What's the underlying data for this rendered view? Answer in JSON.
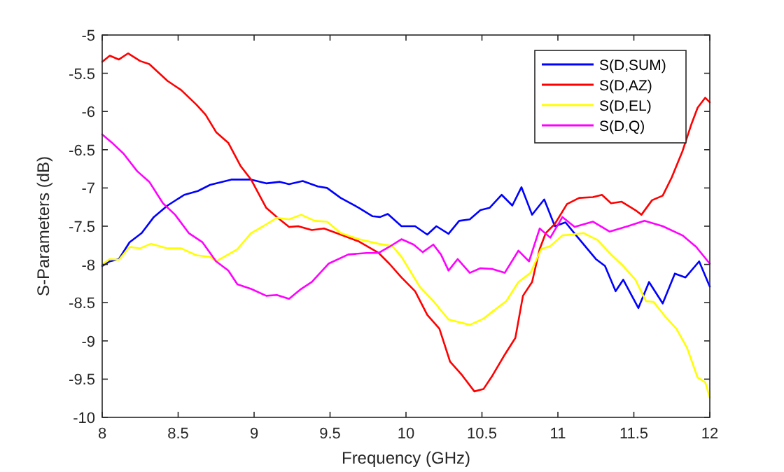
{
  "chart_data": {
    "type": "line",
    "xlabel": "Frequency (GHz)",
    "ylabel": "S-Parameters (dB)",
    "xlim": [
      8,
      12
    ],
    "xticks": [
      8,
      8.5,
      9,
      9.5,
      10,
      10.5,
      11,
      11.5,
      12
    ],
    "ylim": [
      -10,
      -5
    ],
    "yticks": [
      -10,
      -9.5,
      -9,
      -8.5,
      -8,
      -7.5,
      -7,
      -6.5,
      -6,
      -5.5,
      -5
    ],
    "grid": false,
    "legend": "top right",
    "marker": "none",
    "line_style": "solid",
    "series": [
      {
        "name": "S(D,SUM)",
        "color": "#0000ff",
        "x": [
          8,
          8.05,
          8.11,
          8.18,
          8.26,
          8.34,
          8.43,
          8.54,
          8.63,
          8.71,
          8.85,
          8.98,
          9.08,
          9.17,
          9.23,
          9.32,
          9.42,
          9.48,
          9.57,
          9.69,
          9.78,
          9.83,
          9.88,
          9.97,
          10.06,
          10.14,
          10.2,
          10.28,
          10.35,
          10.42,
          10.49,
          10.55,
          10.63,
          10.7,
          10.76,
          10.83,
          10.91,
          10.98,
          11.05,
          11.12,
          11.25,
          11.31,
          11.38,
          11.43,
          11.53,
          11.6,
          11.69,
          11.77,
          11.84,
          11.93,
          12
        ],
        "values": [
          -8.02,
          -7.96,
          -7.93,
          -7.71,
          -7.59,
          -7.38,
          -7.23,
          -7.09,
          -7.04,
          -6.96,
          -6.89,
          -6.89,
          -6.94,
          -6.92,
          -6.95,
          -6.91,
          -6.98,
          -7.0,
          -7.13,
          -7.26,
          -7.37,
          -7.38,
          -7.34,
          -7.5,
          -7.5,
          -7.61,
          -7.5,
          -7.6,
          -7.43,
          -7.41,
          -7.29,
          -7.26,
          -7.09,
          -7.23,
          -6.99,
          -7.35,
          -7.15,
          -7.5,
          -7.45,
          -7.62,
          -7.93,
          -8.02,
          -8.35,
          -8.2,
          -8.57,
          -8.23,
          -8.51,
          -8.12,
          -8.17,
          -7.96,
          -8.29
        ]
      },
      {
        "name": "S(D,AZ)",
        "color": "#ff0000",
        "x": [
          8,
          8.05,
          8.11,
          8.17,
          8.25,
          8.31,
          8.37,
          8.43,
          8.52,
          8.62,
          8.68,
          8.75,
          8.83,
          8.91,
          8.98,
          9.08,
          9.15,
          9.23,
          9.29,
          9.38,
          9.46,
          9.57,
          9.69,
          9.82,
          9.89,
          9.97,
          10.06,
          10.14,
          10.22,
          10.29,
          10.37,
          10.45,
          10.51,
          10.57,
          10.65,
          10.72,
          10.77,
          10.83,
          10.88,
          10.92,
          10.98,
          11.06,
          11.14,
          11.23,
          11.29,
          11.35,
          11.42,
          11.51,
          11.55,
          11.62,
          11.69,
          11.75,
          11.82,
          11.88,
          11.92,
          11.97,
          12
        ],
        "values": [
          -5.35,
          -5.27,
          -5.32,
          -5.24,
          -5.34,
          -5.38,
          -5.49,
          -5.6,
          -5.72,
          -5.91,
          -6.04,
          -6.27,
          -6.41,
          -6.71,
          -6.89,
          -7.26,
          -7.38,
          -7.51,
          -7.5,
          -7.55,
          -7.53,
          -7.61,
          -7.7,
          -7.85,
          -7.99,
          -8.17,
          -8.35,
          -8.66,
          -8.84,
          -9.27,
          -9.45,
          -9.66,
          -9.63,
          -9.45,
          -9.18,
          -8.96,
          -8.41,
          -8.23,
          -7.8,
          -7.59,
          -7.47,
          -7.21,
          -7.13,
          -7.12,
          -7.09,
          -7.2,
          -7.18,
          -7.29,
          -7.35,
          -7.16,
          -7.1,
          -6.86,
          -6.52,
          -6.16,
          -5.95,
          -5.82,
          -5.88
        ]
      },
      {
        "name": "S(D,EL)",
        "color": "#ffff00",
        "x": [
          8,
          8.05,
          8.11,
          8.18,
          8.25,
          8.32,
          8.43,
          8.52,
          8.62,
          8.71,
          8.75,
          8.83,
          8.89,
          8.98,
          9.06,
          9.15,
          9.23,
          9.31,
          9.4,
          9.48,
          9.57,
          9.69,
          9.82,
          9.91,
          9.97,
          10.09,
          10.18,
          10.28,
          10.34,
          10.42,
          10.51,
          10.58,
          10.66,
          10.74,
          10.82,
          10.89,
          10.95,
          11.03,
          11.09,
          11.17,
          11.26,
          11.35,
          11.43,
          11.51,
          11.58,
          11.63,
          11.71,
          11.78,
          11.85,
          11.92,
          11.97,
          12
        ],
        "values": [
          -8.0,
          -7.93,
          -7.94,
          -7.77,
          -7.79,
          -7.73,
          -7.79,
          -7.79,
          -7.88,
          -7.9,
          -7.96,
          -7.87,
          -7.8,
          -7.59,
          -7.5,
          -7.39,
          -7.41,
          -7.35,
          -7.43,
          -7.44,
          -7.59,
          -7.67,
          -7.73,
          -7.76,
          -7.9,
          -8.29,
          -8.48,
          -8.72,
          -8.75,
          -8.79,
          -8.71,
          -8.6,
          -8.48,
          -8.23,
          -8.11,
          -7.8,
          -7.76,
          -7.62,
          -7.61,
          -7.59,
          -7.68,
          -7.87,
          -8.02,
          -8.2,
          -8.48,
          -8.49,
          -8.69,
          -8.84,
          -9.09,
          -9.48,
          -9.54,
          -9.74
        ]
      },
      {
        "name": "S(D,Q)",
        "color": "#ff00ff",
        "x": [
          8,
          8.06,
          8.14,
          8.23,
          8.31,
          8.4,
          8.48,
          8.57,
          8.66,
          8.75,
          8.83,
          8.89,
          8.98,
          9.08,
          9.15,
          9.23,
          9.31,
          9.38,
          9.49,
          9.62,
          9.74,
          9.82,
          9.89,
          9.97,
          10.05,
          10.11,
          10.18,
          10.23,
          10.28,
          10.34,
          10.42,
          10.49,
          10.57,
          10.65,
          10.74,
          10.81,
          10.88,
          10.95,
          11.03,
          11.11,
          11.23,
          11.34,
          11.46,
          11.57,
          11.69,
          11.82,
          11.91,
          12
        ],
        "values": [
          -6.3,
          -6.4,
          -6.55,
          -6.78,
          -6.92,
          -7.2,
          -7.35,
          -7.59,
          -7.71,
          -7.96,
          -8.08,
          -8.26,
          -8.32,
          -8.41,
          -8.4,
          -8.45,
          -8.32,
          -8.23,
          -7.99,
          -7.87,
          -7.85,
          -7.85,
          -7.77,
          -7.67,
          -7.74,
          -7.84,
          -7.74,
          -7.87,
          -8.08,
          -7.93,
          -8.11,
          -8.05,
          -8.06,
          -8.11,
          -7.82,
          -7.96,
          -7.53,
          -7.65,
          -7.38,
          -7.51,
          -7.44,
          -7.57,
          -7.5,
          -7.43,
          -7.5,
          -7.62,
          -7.77,
          -7.99
        ]
      }
    ]
  }
}
